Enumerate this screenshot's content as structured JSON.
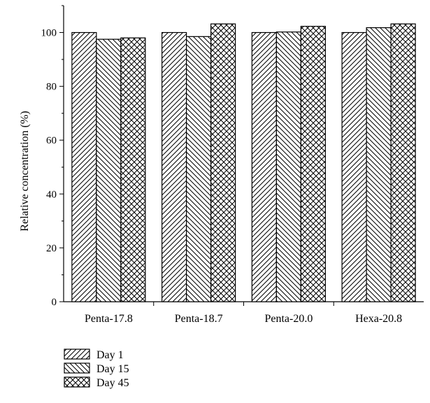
{
  "chart_data": {
    "type": "bar",
    "title": "",
    "xlabel": "",
    "ylabel": "Relative concentration (%)",
    "ylim": [
      0,
      110
    ],
    "yticks": [
      0,
      20,
      40,
      60,
      80,
      100
    ],
    "grid": false,
    "legend_position": "bottom-left",
    "categories": [
      "Penta-17.8",
      "Penta-18.7",
      "Penta-20.0",
      "Hexa-20.8"
    ],
    "series": [
      {
        "name": "Day 1",
        "pattern": "diagonal-up",
        "values": [
          100,
          100,
          100,
          100
        ]
      },
      {
        "name": "Day 15",
        "pattern": "diagonal-down",
        "values": [
          97.5,
          98.5,
          100.2,
          101.8
        ]
      },
      {
        "name": "Day 45",
        "pattern": "crosshatch",
        "values": [
          98,
          103.2,
          102.3,
          103.2
        ]
      }
    ],
    "colors": {
      "stroke": "#000000",
      "fill": "#ffffff"
    }
  }
}
